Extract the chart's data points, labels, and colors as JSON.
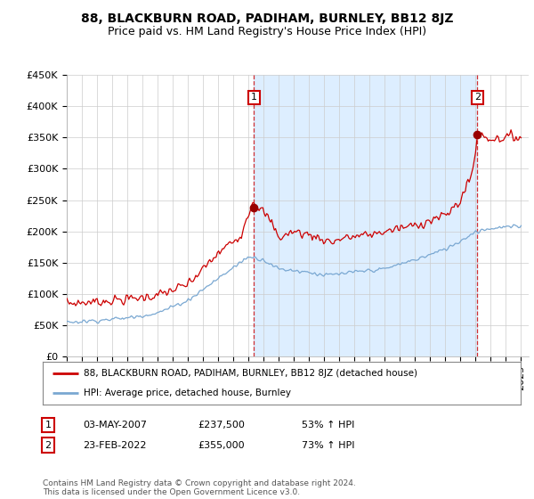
{
  "title": "88, BLACKBURN ROAD, PADIHAM, BURNLEY, BB12 8JZ",
  "subtitle": "Price paid vs. HM Land Registry's House Price Index (HPI)",
  "ylabel_ticks": [
    "£0",
    "£50K",
    "£100K",
    "£150K",
    "£200K",
    "£250K",
    "£300K",
    "£350K",
    "£400K",
    "£450K"
  ],
  "ylim": [
    0,
    450000
  ],
  "xlim_start": 1995.0,
  "xlim_end": 2025.5,
  "red_line_label": "88, BLACKBURN ROAD, PADIHAM, BURNLEY, BB12 8JZ (detached house)",
  "blue_line_label": "HPI: Average price, detached house, Burnley",
  "point1_label": "1",
  "point1_date": "03-MAY-2007",
  "point1_price": "£237,500",
  "point1_hpi": "53% ↑ HPI",
  "point2_label": "2",
  "point2_date": "23-FEB-2022",
  "point2_price": "£355,000",
  "point2_hpi": "73% ↑ HPI",
  "footer": "Contains HM Land Registry data © Crown copyright and database right 2024.\nThis data is licensed under the Open Government Licence v3.0.",
  "red_color": "#cc0000",
  "blue_color": "#7aa8d2",
  "shade_color": "#ddeeff",
  "point_marker_color": "#990000",
  "grid_color": "#cccccc",
  "background_color": "#ffffff",
  "title_fontsize": 10,
  "subtitle_fontsize": 9,
  "tick_fontsize": 8,
  "legend_fontsize": 8,
  "point1_x": 2007.37,
  "point1_y": 237500,
  "point2_x": 2022.12,
  "point2_y": 355000
}
